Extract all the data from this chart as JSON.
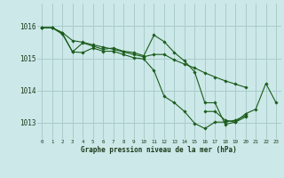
{
  "title": "Graphe pression niveau de la mer (hPa)",
  "background_color": "#cce8e8",
  "grid_color": "#aacccc",
  "line_color": "#1a5c1a",
  "marker_color": "#1a5c1a",
  "xlim": [
    -0.5,
    23.5
  ],
  "ylim": [
    1012.5,
    1016.7
  ],
  "yticks": [
    1013,
    1014,
    1015,
    1016
  ],
  "xticks": [
    0,
    1,
    2,
    3,
    4,
    5,
    6,
    7,
    8,
    9,
    10,
    11,
    12,
    13,
    14,
    15,
    16,
    17,
    18,
    19,
    20,
    21,
    22,
    23
  ],
  "series": [
    [
      1015.95,
      1015.95,
      1015.8,
      1015.55,
      1015.5,
      1015.42,
      1015.35,
      1015.28,
      1015.2,
      1015.12,
      1015.05,
      1015.12,
      1015.12,
      1014.95,
      1014.82,
      1014.7,
      1014.55,
      1014.42,
      1014.3,
      1014.2,
      1014.1,
      null,
      null,
      null
    ],
    [
      1015.95,
      1015.95,
      1015.75,
      1015.2,
      1015.48,
      1015.38,
      1015.28,
      1015.32,
      1015.22,
      1015.18,
      1015.08,
      1015.72,
      1015.52,
      1015.18,
      1014.92,
      1014.58,
      1013.62,
      1013.62,
      1012.95,
      1013.02,
      1013.18,
      null,
      null,
      null
    ],
    [
      1015.95,
      1015.95,
      1015.78,
      1015.2,
      1015.18,
      1015.32,
      1015.22,
      1015.22,
      1015.12,
      1015.02,
      1014.98,
      1014.62,
      1013.82,
      1013.62,
      1013.35,
      1012.98,
      1012.82,
      1013.02,
      1013.02,
      1013.08,
      1013.22,
      null,
      null,
      null
    ],
    [
      null,
      null,
      null,
      null,
      null,
      null,
      null,
      null,
      null,
      null,
      null,
      null,
      null,
      null,
      null,
      null,
      1013.35,
      1013.35,
      1013.08,
      1013.02,
      1013.28,
      1013.42,
      1014.22,
      1013.62
    ]
  ]
}
